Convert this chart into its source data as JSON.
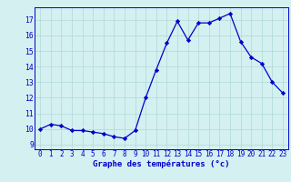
{
  "x": [
    0,
    1,
    2,
    3,
    4,
    5,
    6,
    7,
    8,
    9,
    10,
    11,
    12,
    13,
    14,
    15,
    16,
    17,
    18,
    19,
    20,
    21,
    22,
    23
  ],
  "y": [
    10.0,
    10.3,
    10.2,
    9.9,
    9.9,
    9.8,
    9.7,
    9.5,
    9.4,
    9.9,
    12.0,
    13.8,
    15.5,
    16.9,
    15.7,
    16.8,
    16.8,
    17.1,
    17.4,
    15.6,
    14.6,
    14.2,
    13.0,
    12.3
  ],
  "xlabel": "Graphe des températures (°c)",
  "ylabel_ticks": [
    9,
    10,
    11,
    12,
    13,
    14,
    15,
    16,
    17
  ],
  "ylim": [
    8.7,
    17.8
  ],
  "xlim": [
    -0.5,
    23.5
  ],
  "line_color": "#0000cc",
  "marker": "D",
  "marker_size": 2.2,
  "bg_color": "#d4f0f0",
  "grid_color": "#b0d8d8",
  "xlabel_color": "#0000cc",
  "tick_color": "#0000cc",
  "tick_fontsize": 5.5,
  "xlabel_fontsize": 6.5
}
